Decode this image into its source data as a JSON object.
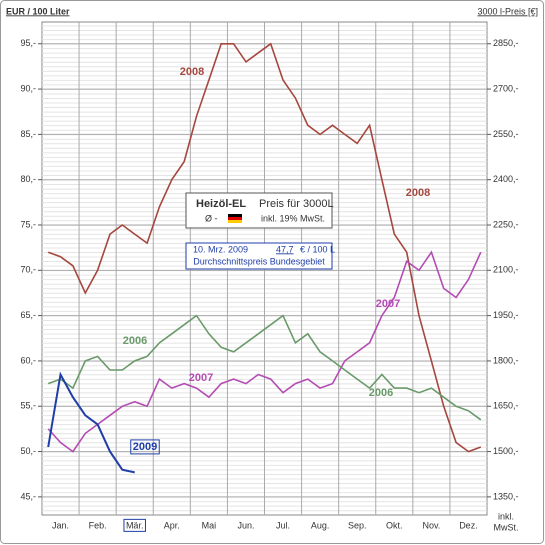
{
  "chart_data": {
    "type": "line",
    "y_axis_label": "EUR / 100 Liter",
    "y2_axis_label": "3000 l-Preis [€]",
    "y2_note": [
      "inkl.",
      "MwSt."
    ],
    "categories": [
      null,
      "Jan.",
      null,
      null,
      "Feb.",
      null,
      null,
      "Mär.",
      null,
      null,
      "Apr.",
      null,
      null,
      "Mai",
      null,
      null,
      "Jun.",
      null,
      null,
      "Jul.",
      null,
      null,
      "Aug.",
      null,
      null,
      "Sep.",
      null,
      null,
      "Okt.",
      null,
      null,
      "Nov.",
      null,
      null,
      "Dez.",
      null
    ],
    "highlight": "Mär.",
    "ylim": [
      43,
      97.4
    ],
    "yticks": [
      {
        "value": 45,
        "label": "45,-"
      },
      {
        "value": 50,
        "label": "50,-"
      },
      {
        "value": 55,
        "label": "55,-"
      },
      {
        "value": 60,
        "label": "60,-"
      },
      {
        "value": 65,
        "label": "65,-"
      },
      {
        "value": 70,
        "label": "70,-"
      },
      {
        "value": 75,
        "label": "75,-"
      },
      {
        "value": 80,
        "label": "80,-"
      },
      {
        "value": 85,
        "label": "85,-"
      },
      {
        "value": 90,
        "label": "90,-"
      },
      {
        "value": 95,
        "label": "95,-"
      }
    ],
    "y2lim": [
      1290,
      2922
    ],
    "y2ticks": [
      {
        "value": 1350,
        "label": "1350,-"
      },
      {
        "value": 1500,
        "label": "1500,-"
      },
      {
        "value": 1650,
        "label": "1650,-"
      },
      {
        "value": 1800,
        "label": "1800,-"
      },
      {
        "value": 1950,
        "label": "1950,-"
      },
      {
        "value": 2100,
        "label": "2100,-"
      },
      {
        "value": 2250,
        "label": "2250,-"
      },
      {
        "value": 2400,
        "label": "2400,-"
      },
      {
        "value": 2550,
        "label": "2550,-"
      },
      {
        "value": 2700,
        "label": "2700,-"
      },
      {
        "value": 2850,
        "label": "2850,-"
      }
    ],
    "grid": true,
    "series": [
      {
        "name": "2008",
        "color": "#a5473e",
        "values": [
          72,
          71.5,
          70.5,
          67.5,
          70,
          74,
          75,
          74,
          73,
          77,
          80,
          82,
          87,
          91,
          95,
          95,
          93,
          94,
          95,
          91,
          89,
          86,
          85,
          86,
          85,
          84,
          86,
          80,
          74,
          72,
          65,
          60,
          55,
          51,
          50,
          50.5
        ]
      },
      {
        "name": "2007",
        "color": "#b44cb4",
        "values": [
          52.5,
          51,
          50,
          52,
          53,
          54,
          55,
          55.5,
          55,
          58,
          57,
          57.5,
          57,
          56,
          57.5,
          58,
          57.5,
          58.5,
          58,
          56.5,
          57.5,
          58,
          57,
          57.5,
          60,
          61,
          62,
          65,
          67,
          71,
          70,
          72,
          68,
          67,
          69,
          72
        ]
      },
      {
        "name": "2006",
        "color": "#6a9a6a",
        "values": [
          57.5,
          58,
          57,
          60,
          60.5,
          59,
          59,
          60,
          60.5,
          62,
          63,
          64,
          65,
          63,
          61.5,
          61,
          62,
          63,
          64,
          65,
          62,
          63,
          61,
          60,
          59,
          58,
          57,
          58.5,
          57,
          57,
          56.5,
          57,
          56,
          55,
          54.5,
          53.5
        ]
      },
      {
        "name": "2009",
        "color": "#1f3ea8",
        "values": [
          50.5,
          58.5,
          56,
          54,
          53,
          50,
          48,
          47.7,
          null,
          null,
          null,
          null,
          null,
          null,
          null,
          null,
          null,
          null,
          null,
          null,
          null,
          null,
          null,
          null,
          null,
          null,
          null,
          null,
          null,
          null,
          null,
          null,
          null,
          null,
          null,
          null
        ]
      }
    ],
    "legend_box": {
      "title": "Heizöl-EL",
      "text": "Preis für 3000L",
      "symbol": "Ø -",
      "tax": "inkl. 19% MwSt."
    },
    "info_box": {
      "date": "10. Mrz. 2009",
      "price": "47,7",
      "unit": "€ / 100 L",
      "note": "Durchschnittspreis Bundesgebiet"
    }
  }
}
